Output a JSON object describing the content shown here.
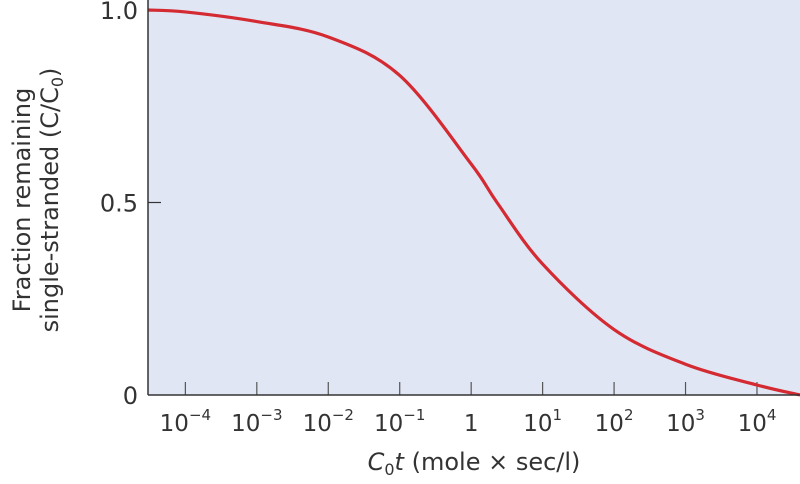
{
  "chart_data": {
    "type": "line",
    "title": "",
    "xlabel": {
      "prefix": "C",
      "sub": "0",
      "italic": "t",
      "rest": " (mole × sec/l)"
    },
    "ylabel": {
      "line1": "Fraction remaining",
      "line2": "single-stranded (C/C",
      "line2_sub": "0",
      "line2_end": ")"
    },
    "x_scale": "log",
    "xlim": [
      3e-05,
      40000
    ],
    "ylim": [
      0,
      1.0
    ],
    "x_ticks": [
      {
        "value": 0.0001,
        "base": "10",
        "exp": "−4"
      },
      {
        "value": 0.001,
        "base": "10",
        "exp": "−3"
      },
      {
        "value": 0.01,
        "base": "10",
        "exp": "−2"
      },
      {
        "value": 0.1,
        "base": "10",
        "exp": "−1"
      },
      {
        "value": 1,
        "base": "1",
        "exp": ""
      },
      {
        "value": 10,
        "base": "10",
        "exp": "1"
      },
      {
        "value": 100,
        "base": "10",
        "exp": "2"
      },
      {
        "value": 1000,
        "base": "10",
        "exp": "3"
      },
      {
        "value": 10000,
        "base": "10",
        "exp": "4"
      }
    ],
    "y_ticks": [
      {
        "value": 0,
        "label": "0"
      },
      {
        "value": 0.5,
        "label": "0.5"
      },
      {
        "value": 1.0,
        "label": "1.0"
      }
    ],
    "grid": false,
    "series": [
      {
        "x": [
          3e-05,
          0.0001,
          0.001,
          0.01,
          0.1,
          1,
          2.3,
          10,
          100,
          1000,
          10000,
          40000
        ],
        "y": [
          1.0,
          0.995,
          0.97,
          0.93,
          0.83,
          0.6,
          0.5,
          0.34,
          0.17,
          0.08,
          0.026,
          0.0
        ]
      }
    ],
    "colors": {
      "curve": "#d42a32",
      "plot_bg": "#e1e6f5",
      "axis": "#333333"
    }
  }
}
